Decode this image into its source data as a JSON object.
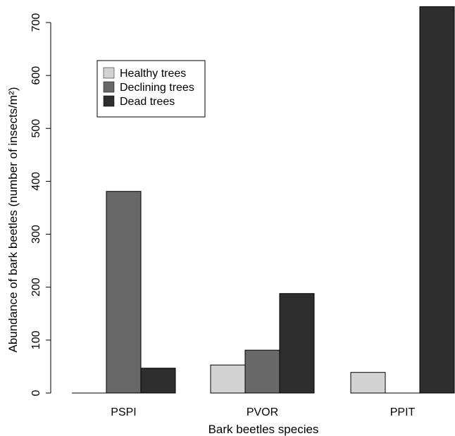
{
  "chart_data": {
    "type": "bar",
    "title": "",
    "xlabel": "Bark beetles species",
    "ylabel": "Abundance of bark beetles (number of insects/m²)",
    "categories": [
      "PSPI",
      "PVOR",
      "PPIT"
    ],
    "series": [
      {
        "name": "Healthy trees",
        "color": "#d3d3d3",
        "values": [
          0,
          53,
          39
        ]
      },
      {
        "name": "Declining trees",
        "color": "#686868",
        "values": [
          381,
          81,
          0
        ]
      },
      {
        "name": "Dead trees",
        "color": "#2e2e2e",
        "values": [
          47,
          188,
          730
        ]
      }
    ],
    "ylim": [
      0,
      730
    ],
    "yticks": [
      0,
      100,
      200,
      300,
      400,
      500,
      600,
      700
    ],
    "legend_position": "top-left",
    "grid": false
  }
}
